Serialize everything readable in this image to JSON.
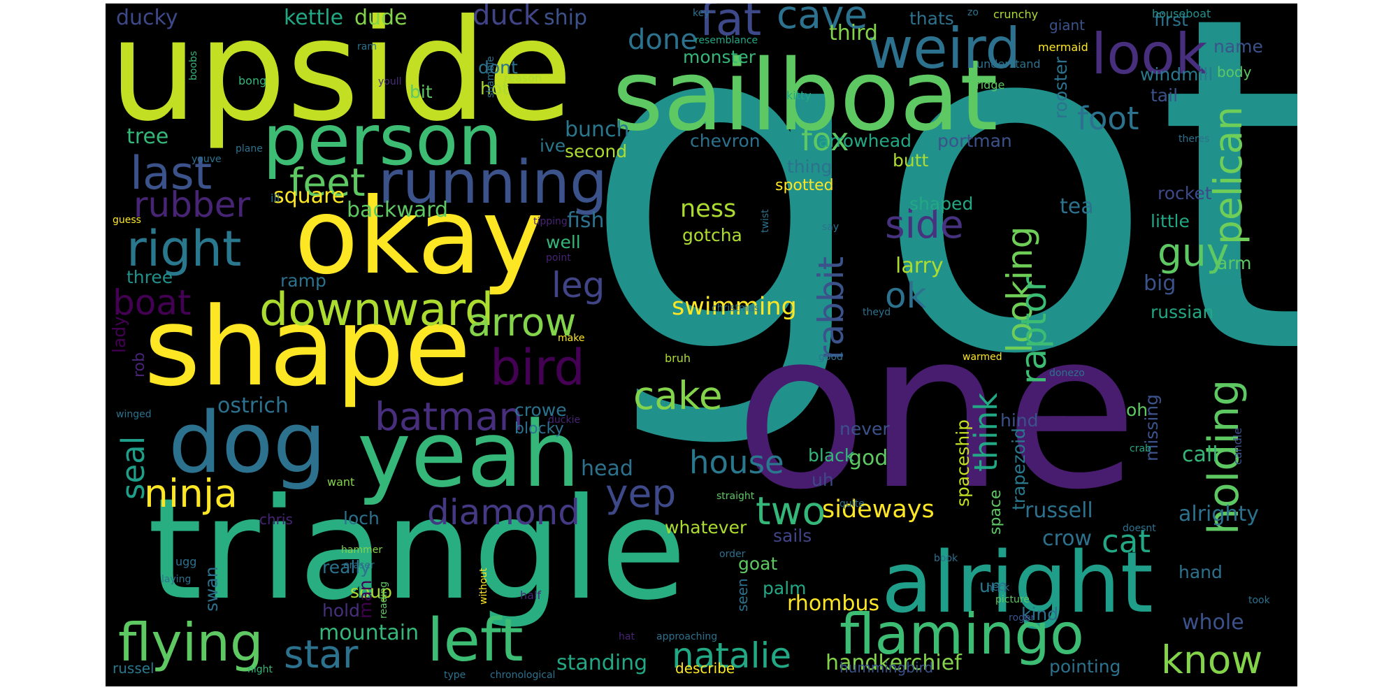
{
  "image": {
    "kind": "word cloud",
    "background": "#000000",
    "page_background": "#ffffff",
    "palette": "viridis",
    "colors": {
      "dark_purple": "#440154",
      "indigo": "#472f7d",
      "blue": "#3b528b",
      "steel": "#2c728e",
      "teal": "#21918c",
      "sea": "#28ae80",
      "green": "#5ec962",
      "lime": "#addc30",
      "yellow": "#fde725"
    }
  },
  "words": [
    {
      "text": "got",
      "color": "#21918c"
    },
    {
      "text": "triangle",
      "color": "#28ae80"
    },
    {
      "text": "upside",
      "color": "#c2df23"
    },
    {
      "text": "one",
      "color": "#481c6e"
    },
    {
      "text": "sailboat",
      "color": "#5ec962"
    },
    {
      "text": "okay",
      "color": "#fde725"
    },
    {
      "text": "shape",
      "color": "#fde725"
    },
    {
      "text": "yeah",
      "color": "#35b779"
    },
    {
      "text": "alright",
      "color": "#1f9e89"
    },
    {
      "text": "dog",
      "color": "#2c728e"
    },
    {
      "text": "person",
      "color": "#3dbc74"
    },
    {
      "text": "flamingo",
      "color": "#3dbc74"
    },
    {
      "text": "running",
      "color": "#3b528b"
    },
    {
      "text": "weird",
      "color": "#2c728e"
    },
    {
      "text": "look",
      "color": "#472f7d"
    },
    {
      "text": "left",
      "color": "#3dbc74"
    },
    {
      "text": "flying",
      "color": "#5ec962"
    },
    {
      "text": "right",
      "color": "#2a788e"
    },
    {
      "text": "downward",
      "color": "#addc30"
    },
    {
      "text": "holding",
      "color": "#5ec962"
    },
    {
      "text": "pelican",
      "color": "#6ece58"
    },
    {
      "text": "fat",
      "color": "#3e4989"
    },
    {
      "text": "cave",
      "color": "#2c728e"
    },
    {
      "text": "last",
      "color": "#3b528b"
    },
    {
      "text": "feet",
      "color": "#5ec962"
    },
    {
      "text": "arrow",
      "color": "#84d44b"
    },
    {
      "text": "bird",
      "color": "#440154"
    },
    {
      "text": "batman",
      "color": "#472f7d"
    },
    {
      "text": "ninja",
      "color": "#fde725"
    },
    {
      "text": "diamond",
      "color": "#443a83"
    },
    {
      "text": "yep",
      "color": "#3e4989"
    },
    {
      "text": "cake",
      "color": "#84d44b"
    },
    {
      "text": "two",
      "color": "#35b779"
    },
    {
      "text": "star",
      "color": "#2c728e"
    },
    {
      "text": "natalie",
      "color": "#22a884"
    },
    {
      "text": "know",
      "color": "#84d44b"
    },
    {
      "text": "guy",
      "color": "#5ec962"
    },
    {
      "text": "side",
      "color": "#46327e"
    },
    {
      "text": "ok",
      "color": "#2c728e"
    },
    {
      "text": "rabbit",
      "color": "#3b528b"
    },
    {
      "text": "looking",
      "color": "#6ece58"
    },
    {
      "text": "raptor",
      "color": "#3dbc74"
    },
    {
      "text": "think",
      "color": "#22a884"
    },
    {
      "text": "boat",
      "color": "#440154"
    },
    {
      "text": "rubber",
      "color": "#482475"
    },
    {
      "text": "seal",
      "color": "#1f9e89"
    },
    {
      "text": "leg",
      "color": "#414487"
    },
    {
      "text": "foot",
      "color": "#2c728e"
    },
    {
      "text": "house",
      "color": "#2a788e"
    },
    {
      "text": "fox",
      "color": "#5ec962"
    },
    {
      "text": "done",
      "color": "#2c728e"
    },
    {
      "text": "cat",
      "color": "#22a884"
    },
    {
      "text": "duck",
      "color": "#414487"
    },
    {
      "text": "ness",
      "color": "#addc30"
    },
    {
      "text": "swimming",
      "color": "#fde725"
    },
    {
      "text": "sideways",
      "color": "#fde725"
    },
    {
      "text": "alrighty",
      "color": "#2c728e"
    },
    {
      "text": "handkerchief",
      "color": "#84d44b"
    },
    {
      "text": "standing",
      "color": "#22a884"
    },
    {
      "text": "whole",
      "color": "#3b528b"
    },
    {
      "text": "ostrich",
      "color": "#2c728e"
    },
    {
      "text": "square",
      "color": "#fde725"
    },
    {
      "text": "backward",
      "color": "#5ec962"
    },
    {
      "text": "russell",
      "color": "#2c728e"
    },
    {
      "text": "crow",
      "color": "#2c728e"
    },
    {
      "text": "shaped",
      "color": "#22a884"
    },
    {
      "text": "tea",
      "color": "#2c728e"
    },
    {
      "text": "larry",
      "color": "#addc30"
    },
    {
      "text": "gotcha",
      "color": "#addc30"
    },
    {
      "text": "spaceship",
      "color": "#c2df23"
    },
    {
      "text": "trapezoid",
      "color": "#2a788e"
    },
    {
      "text": "rhombus",
      "color": "#fde725"
    },
    {
      "text": "mountain",
      "color": "#35b779"
    },
    {
      "text": "chevron",
      "color": "#2c728e"
    },
    {
      "text": "arrowhead",
      "color": "#22a884"
    },
    {
      "text": "portman",
      "color": "#3b528b"
    },
    {
      "text": "rooster",
      "color": "#2c728e"
    },
    {
      "text": "monster",
      "color": "#35b779"
    },
    {
      "text": "bunch",
      "color": "#2a788e"
    },
    {
      "text": "second",
      "color": "#addc30"
    },
    {
      "text": "tree",
      "color": "#35b779"
    },
    {
      "text": "fish",
      "color": "#2c728e"
    },
    {
      "text": "dude",
      "color": "#84d44b"
    },
    {
      "text": "kettle",
      "color": "#22a884"
    },
    {
      "text": "ducky",
      "color": "#3e4989"
    },
    {
      "text": "ship",
      "color": "#3b528b"
    },
    {
      "text": "third",
      "color": "#84d44b"
    },
    {
      "text": "thats",
      "color": "#2c728e"
    },
    {
      "text": "first",
      "color": "#2c728e"
    },
    {
      "text": "windmill",
      "color": "#2a788e"
    },
    {
      "text": "tail",
      "color": "#3b528b"
    },
    {
      "text": "little",
      "color": "#22a884"
    },
    {
      "text": "rocket",
      "color": "#3e4989"
    },
    {
      "text": "big",
      "color": "#3b528b"
    },
    {
      "text": "russian",
      "color": "#22a884"
    },
    {
      "text": "arm",
      "color": "#5ec962"
    },
    {
      "text": "now",
      "color": "#21918c"
    },
    {
      "text": "name",
      "color": "#3b528b"
    },
    {
      "text": "body",
      "color": "#5ec962"
    },
    {
      "text": "bit",
      "color": "#5ec962"
    },
    {
      "text": "hot",
      "color": "#addc30"
    },
    {
      "text": "dont",
      "color": "#2c728e"
    },
    {
      "text": "really",
      "color": "#2c728e"
    },
    {
      "text": "soup",
      "color": "#addc30"
    },
    {
      "text": "loch",
      "color": "#2c728e"
    },
    {
      "text": "chris",
      "color": "#482475"
    },
    {
      "text": "goat",
      "color": "#5ec962"
    },
    {
      "text": "palm",
      "color": "#22a884"
    },
    {
      "text": "seen",
      "color": "#2c728e"
    },
    {
      "text": "hind",
      "color": "#3b528b"
    },
    {
      "text": "god",
      "color": "#5ec962"
    },
    {
      "text": "never",
      "color": "#3b528b"
    },
    {
      "text": "oh",
      "color": "#5ec962"
    },
    {
      "text": "black",
      "color": "#35b779"
    },
    {
      "text": "uh",
      "color": "#3e4989"
    },
    {
      "text": "call",
      "color": "#35b779"
    },
    {
      "text": "missing",
      "color": "#3b528b"
    },
    {
      "text": "space",
      "color": "#5ec962"
    },
    {
      "text": "head",
      "color": "#2c728e"
    },
    {
      "text": "whatever",
      "color": "#addc30"
    },
    {
      "text": "describe",
      "color": "#fde725"
    },
    {
      "text": "hummingbird",
      "color": "#3b528b"
    },
    {
      "text": "pointing",
      "color": "#2c728e"
    },
    {
      "text": "russel",
      "color": "#2a788e"
    },
    {
      "text": "hand",
      "color": "#2c728e"
    },
    {
      "text": "kind",
      "color": "#2c728e"
    },
    {
      "text": "um",
      "color": "#2a788e"
    },
    {
      "text": "hold",
      "color": "#472f7d"
    },
    {
      "text": "ramp",
      "color": "#2c728e"
    },
    {
      "text": "three",
      "color": "#21918c"
    },
    {
      "text": "lady",
      "color": "#440154"
    },
    {
      "text": "rob",
      "color": "#482475"
    },
    {
      "text": "swan",
      "color": "#2c728e"
    },
    {
      "text": "man",
      "color": "#440154"
    },
    {
      "text": "sails",
      "color": "#414487"
    },
    {
      "text": "crowe",
      "color": "#2c728e"
    },
    {
      "text": "blocky",
      "color": "#2c728e"
    },
    {
      "text": "well",
      "color": "#35b779"
    },
    {
      "text": "ive",
      "color": "#2a788e"
    },
    {
      "text": "thing",
      "color": "#2c728e"
    },
    {
      "text": "butt",
      "color": "#addc30"
    },
    {
      "text": "spotted",
      "color": "#fde725"
    },
    {
      "text": "giant",
      "color": "#3b528b"
    },
    {
      "text": "houseboat",
      "color": "#21918c"
    },
    {
      "text": "crunchy",
      "color": "#addc30"
    },
    {
      "text": "mermaid",
      "color": "#fde725"
    },
    {
      "text": "understand",
      "color": "#2c728e"
    },
    {
      "text": "bridge",
      "color": "#5ec962"
    },
    {
      "text": "kitty",
      "color": "#22a884"
    },
    {
      "text": "theres",
      "color": "#2c728e"
    },
    {
      "text": "resemblance",
      "color": "#22a884"
    },
    {
      "text": "key",
      "color": "#2c728e"
    },
    {
      "text": "zo",
      "color": "#2c728e"
    },
    {
      "text": "ram",
      "color": "#2c728e"
    },
    {
      "text": "boobs",
      "color": "#35b779"
    },
    {
      "text": "bong",
      "color": "#35b779"
    },
    {
      "text": "youll",
      "color": "#472f7d"
    },
    {
      "text": "shamble",
      "color": "#2c728e"
    },
    {
      "text": "reason",
      "color": "#addc30"
    },
    {
      "text": "plane",
      "color": "#2c728e"
    },
    {
      "text": "youve",
      "color": "#2c728e"
    },
    {
      "text": "ill",
      "color": "#2c728e"
    },
    {
      "text": "guess",
      "color": "#fde725"
    },
    {
      "text": "tipping",
      "color": "#482475"
    },
    {
      "text": "say",
      "color": "#2c728e"
    },
    {
      "text": "twist",
      "color": "#2c728e"
    },
    {
      "text": "point",
      "color": "#482475"
    },
    {
      "text": "christmas",
      "color": "#2c728e"
    },
    {
      "text": "theyd",
      "color": "#2c728e"
    },
    {
      "text": "make",
      "color": "#fde725"
    },
    {
      "text": "bruh",
      "color": "#addc30"
    },
    {
      "text": "good",
      "color": "#2c728e"
    },
    {
      "text": "warmed",
      "color": "#fde725"
    },
    {
      "text": "donezo",
      "color": "#2c728e"
    },
    {
      "text": "winged",
      "color": "#2c728e"
    },
    {
      "text": "duckie",
      "color": "#482475"
    },
    {
      "text": "crab",
      "color": "#22a884"
    },
    {
      "text": "candle",
      "color": "#3b528b"
    },
    {
      "text": "want",
      "color": "#84d44b"
    },
    {
      "text": "straight",
      "color": "#5ec962"
    },
    {
      "text": "quite",
      "color": "#2c728e"
    },
    {
      "text": "doesnt",
      "color": "#2c728e"
    },
    {
      "text": "ugg",
      "color": "#2c728e"
    },
    {
      "text": "hammer",
      "color": "#84d44b"
    },
    {
      "text": "eraser",
      "color": "#2c728e"
    },
    {
      "text": "order",
      "color": "#2c728e"
    },
    {
      "text": "book",
      "color": "#2c728e"
    },
    {
      "text": "neck",
      "color": "#2c728e"
    },
    {
      "text": "laying",
      "color": "#2c728e"
    },
    {
      "text": "reading",
      "color": "#5ec962"
    },
    {
      "text": "without",
      "color": "#fde725"
    },
    {
      "text": "half",
      "color": "#482475"
    },
    {
      "text": "picture",
      "color": "#5ec962"
    },
    {
      "text": "roger",
      "color": "#3b528b"
    },
    {
      "text": "took",
      "color": "#2c728e"
    },
    {
      "text": "hat",
      "color": "#482475"
    },
    {
      "text": "approaching",
      "color": "#2c728e"
    },
    {
      "text": "night",
      "color": "#35b779"
    },
    {
      "text": "type",
      "color": "#2c728e"
    },
    {
      "text": "chronological",
      "color": "#2c728e"
    }
  ]
}
